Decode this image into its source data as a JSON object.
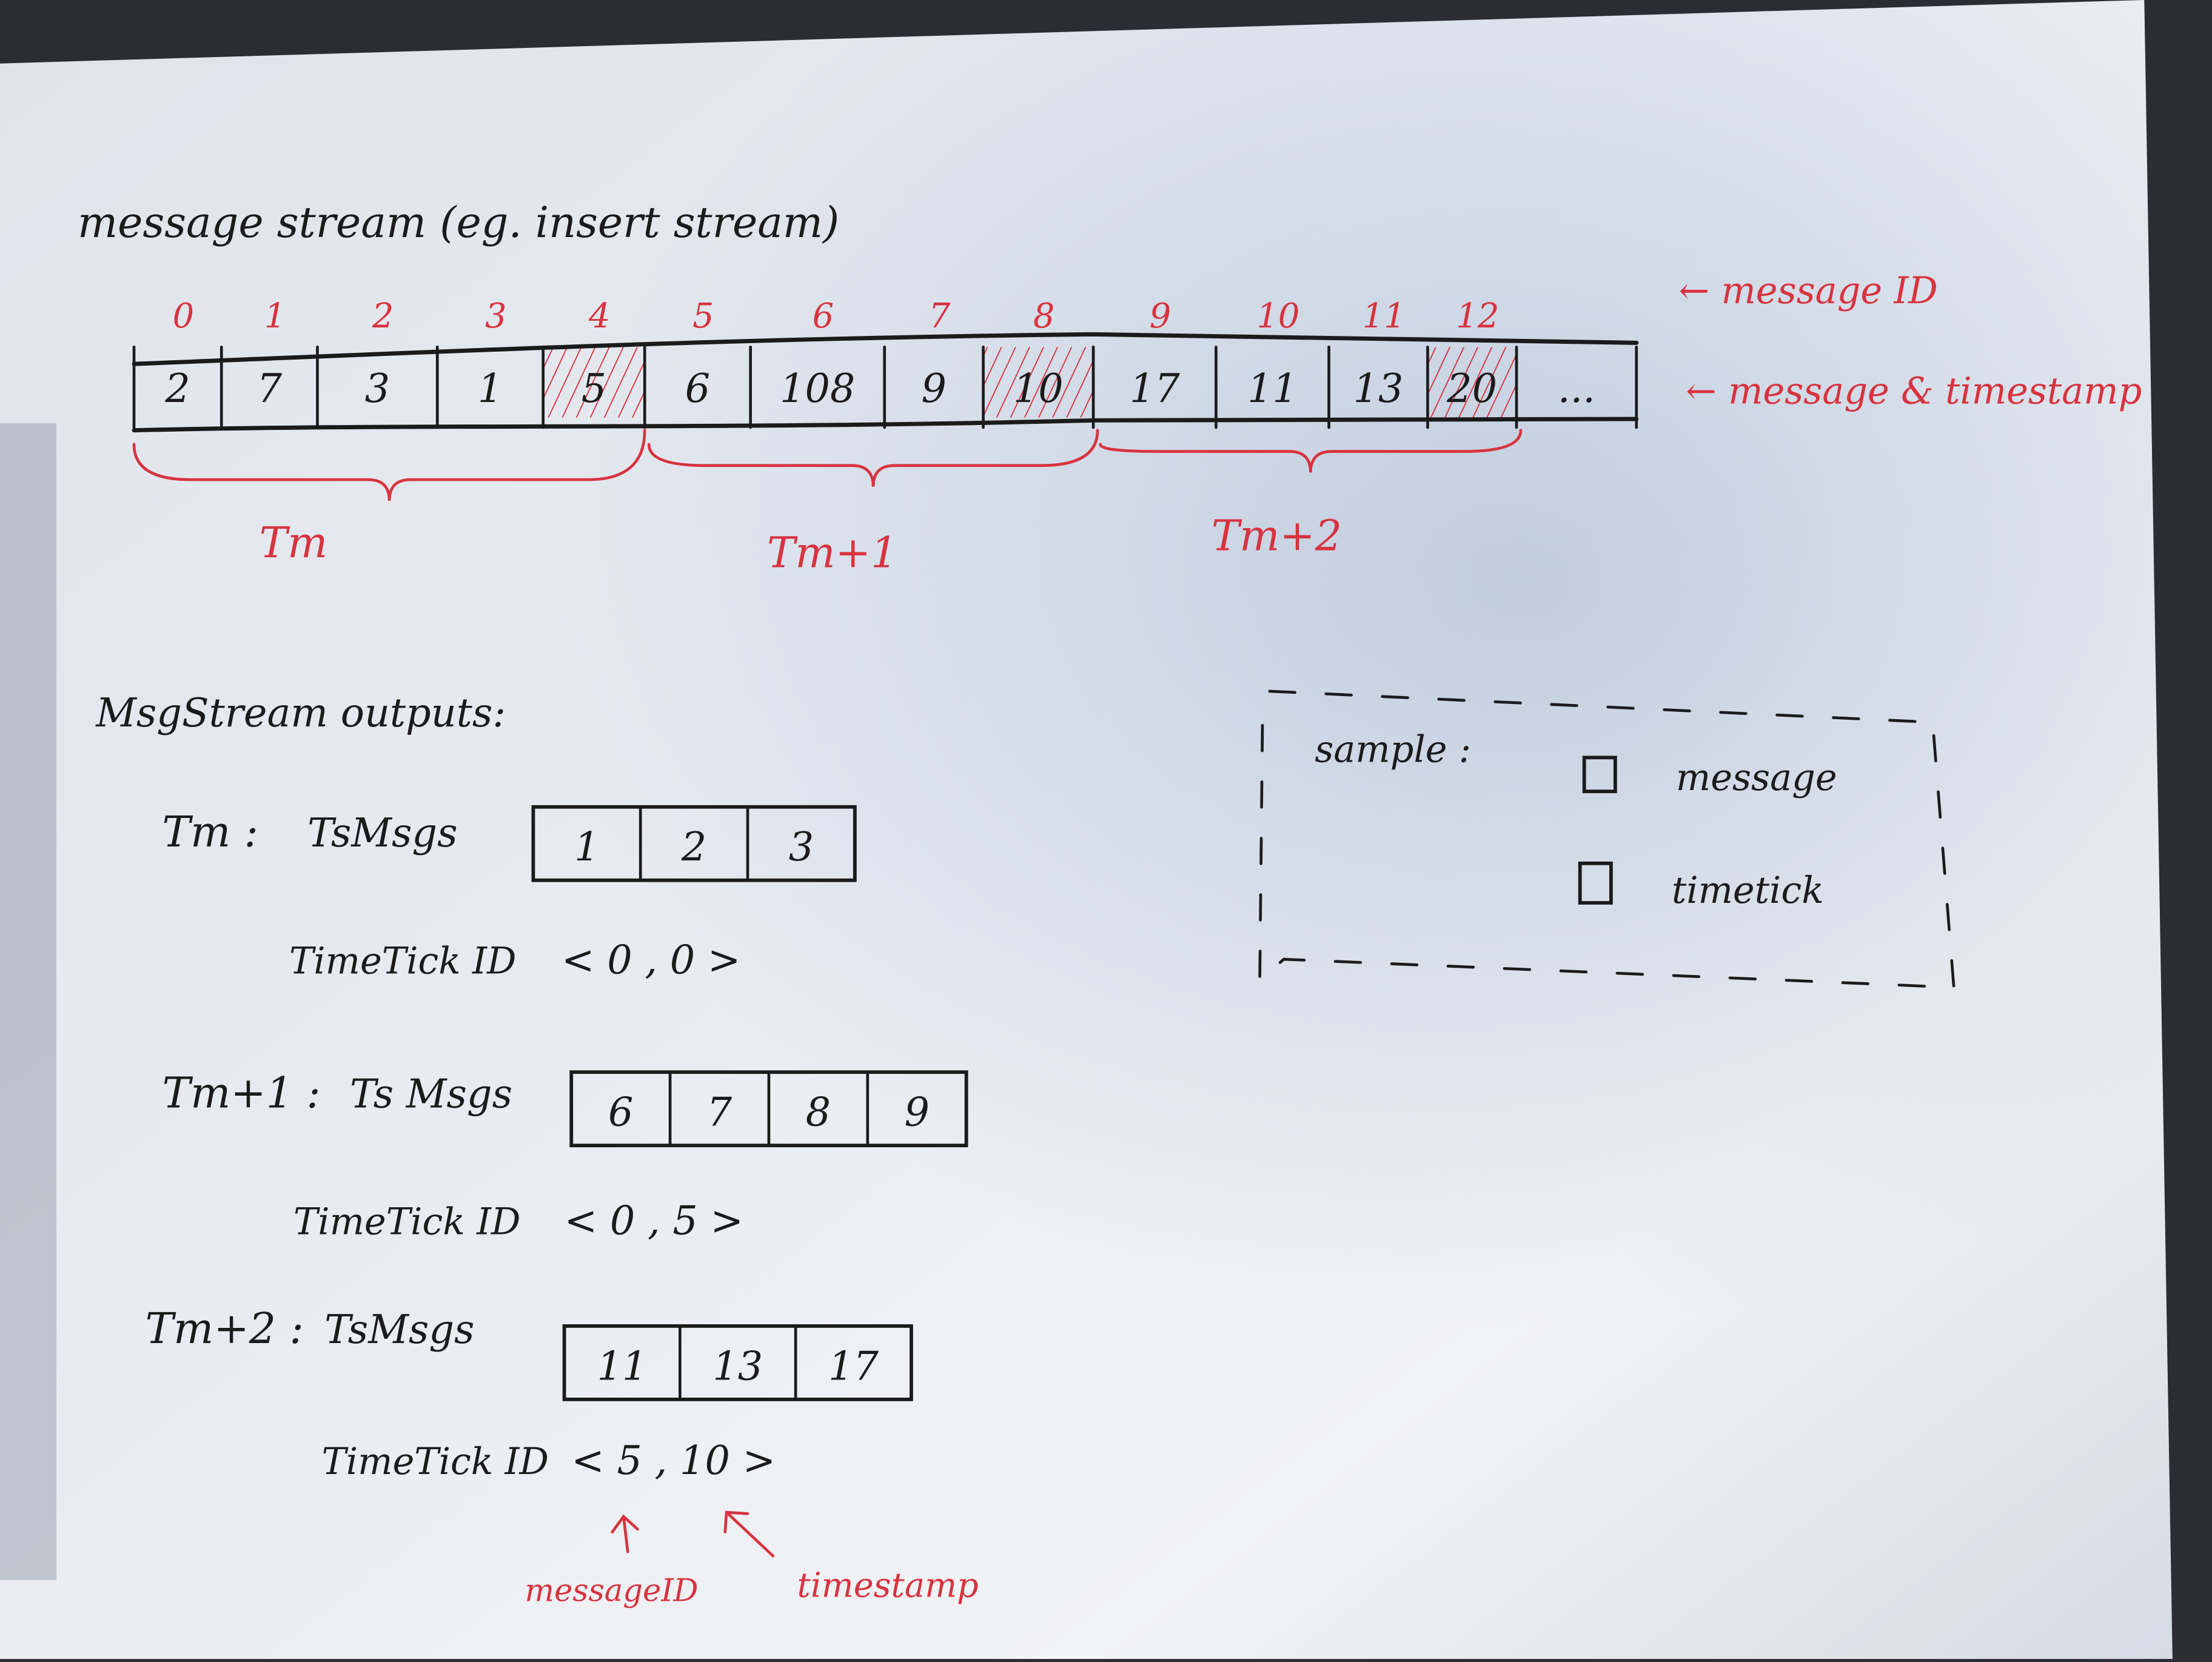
{
  "title": "message stream (eg. insert stream)",
  "stream": {
    "message_ids": [
      "0",
      "1",
      "2",
      "3",
      "4",
      "5",
      "6",
      "7",
      "8",
      "9",
      "10",
      "11",
      "12"
    ],
    "values": [
      "2",
      "7",
      "3",
      "1",
      "5",
      "6",
      "108",
      "9",
      "10",
      "17",
      "11",
      "13",
      "20",
      "..."
    ],
    "timetick_indices": [
      4,
      8,
      12
    ],
    "annotation_id": "← message ID",
    "annotation_ts": "← message & timestamp"
  },
  "groups": [
    {
      "label": "Tm"
    },
    {
      "label": "Tm+1"
    },
    {
      "label": "Tm+2"
    }
  ],
  "outputs": {
    "heading": "MsgStream outputs:",
    "items": [
      {
        "label": "Tm :",
        "msgs_label": "TsMsgs",
        "msgs": [
          "1",
          "2",
          "3"
        ],
        "tick_label": "TimeTick ID",
        "tick_value": "< 0 , 0 >"
      },
      {
        "label": "Tm+1 :",
        "msgs_label": "Ts Msgs",
        "msgs": [
          "6",
          "7",
          "8",
          "9"
        ],
        "tick_label": "TimeTick ID",
        "tick_value": "< 0 , 5 >"
      },
      {
        "label": "Tm+2 :",
        "msgs_label": "TsMsgs",
        "msgs": [
          "11",
          "13",
          "17"
        ],
        "tick_label": "TimeTick ID",
        "tick_value": "< 5 , 10 >"
      }
    ],
    "arrow_message_id": "messageID",
    "arrow_timestamp": "timestamp"
  },
  "legend": {
    "title": "sample :",
    "message": "message",
    "timetick": "timetick"
  },
  "colors": {
    "ink": "#1b1b1b",
    "red_pen": "#d8333f",
    "paper": "#e4e9f0"
  }
}
